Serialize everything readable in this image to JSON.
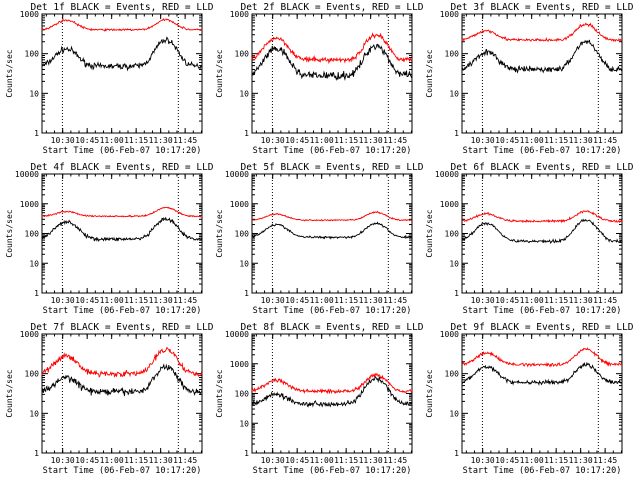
{
  "shared": {
    "xlabel": "Start Time (06-Feb-07 10:17:20)",
    "ylabel": "Counts/sec",
    "x_ticks": [
      "10:30",
      "10:45",
      "11:00",
      "11:15",
      "11:30",
      "11:45"
    ],
    "x_tick_minutes": [
      12.67,
      27.67,
      42.67,
      57.67,
      72.67,
      87.67
    ],
    "xlim_minutes": [
      0,
      98
    ],
    "y_ticks_small": [
      "1",
      "10",
      "100",
      "1000"
    ],
    "y_ticks_large": [
      "1",
      "10",
      "100",
      "1000",
      "10000"
    ],
    "vline_minutes": [
      12.5,
      83.5
    ],
    "colors": {
      "events": "#000000",
      "lld": "#ff0000"
    }
  },
  "chart_data": [
    {
      "type": "line",
      "title": "Det 1f BLACK = Events, RED = LLD",
      "yscale": "log",
      "ylim": [
        1,
        1000
      ],
      "series": [
        {
          "name": "Events",
          "color": "#000000",
          "base": 48,
          "peak1": 130,
          "peak2": 220,
          "noise": 0.06
        },
        {
          "name": "LLD",
          "color": "#ff0000",
          "base": 400,
          "peak1": 700,
          "peak2": 720,
          "noise": 0.02
        }
      ]
    },
    {
      "type": "line",
      "title": "Det 2f BLACK = Events, RED = LLD",
      "yscale": "log",
      "ylim": [
        1,
        1000
      ],
      "series": [
        {
          "name": "Events",
          "color": "#000000",
          "base": 28,
          "peak1": 130,
          "peak2": 160,
          "noise": 0.08
        },
        {
          "name": "LLD",
          "color": "#ff0000",
          "base": 70,
          "peak1": 250,
          "peak2": 300,
          "noise": 0.05
        }
      ]
    },
    {
      "type": "line",
      "title": "Det 3f BLACK = Events, RED = LLD",
      "yscale": "log",
      "ylim": [
        1,
        1000
      ],
      "series": [
        {
          "name": "Events",
          "color": "#000000",
          "base": 40,
          "peak1": 110,
          "peak2": 200,
          "noise": 0.06
        },
        {
          "name": "LLD",
          "color": "#ff0000",
          "base": 220,
          "peak1": 380,
          "peak2": 550,
          "noise": 0.03
        }
      ]
    },
    {
      "type": "line",
      "title": "Det 4f BLACK = Events, RED = LLD",
      "yscale": "log",
      "ylim": [
        1,
        10000
      ],
      "series": [
        {
          "name": "Events",
          "color": "#000000",
          "base": 65,
          "peak1": 250,
          "peak2": 300,
          "noise": 0.05
        },
        {
          "name": "LLD",
          "color": "#ff0000",
          "base": 380,
          "peak1": 550,
          "peak2": 750,
          "noise": 0.02
        }
      ]
    },
    {
      "type": "line",
      "title": "Det 5f BLACK = Events, RED = LLD",
      "yscale": "log",
      "ylim": [
        1,
        10000
      ],
      "series": [
        {
          "name": "Events",
          "color": "#000000",
          "base": 75,
          "peak1": 200,
          "peak2": 220,
          "noise": 0.03
        },
        {
          "name": "LLD",
          "color": "#ff0000",
          "base": 280,
          "peak1": 450,
          "peak2": 520,
          "noise": 0.02
        }
      ]
    },
    {
      "type": "line",
      "title": "Det 6f BLACK = Events, RED = LLD",
      "yscale": "log",
      "ylim": [
        1,
        10000
      ],
      "series": [
        {
          "name": "Events",
          "color": "#000000",
          "base": 55,
          "peak1": 220,
          "peak2": 280,
          "noise": 0.04
        },
        {
          "name": "LLD",
          "color": "#ff0000",
          "base": 260,
          "peak1": 460,
          "peak2": 560,
          "noise": 0.03
        }
      ]
    },
    {
      "type": "line",
      "title": "Det 7f BLACK = Events, RED = LLD",
      "yscale": "log",
      "ylim": [
        1,
        1000
      ],
      "series": [
        {
          "name": "Events",
          "color": "#000000",
          "base": 35,
          "peak1": 80,
          "peak2": 150,
          "noise": 0.07
        },
        {
          "name": "LLD",
          "color": "#ff0000",
          "base": 100,
          "peak1": 280,
          "peak2": 420,
          "noise": 0.06
        }
      ]
    },
    {
      "type": "line",
      "title": "Det 8f BLACK = Events, RED = LLD",
      "yscale": "log",
      "ylim": [
        1,
        10000
      ],
      "series": [
        {
          "name": "Events",
          "color": "#000000",
          "base": 45,
          "peak1": 95,
          "peak2": 300,
          "noise": 0.07
        },
        {
          "name": "LLD",
          "color": "#ff0000",
          "base": 120,
          "peak1": 280,
          "peak2": 420,
          "noise": 0.05
        }
      ]
    },
    {
      "type": "line",
      "title": "Det 9f BLACK = Events, RED = LLD",
      "yscale": "log",
      "ylim": [
        1,
        1000
      ],
      "series": [
        {
          "name": "Events",
          "color": "#000000",
          "base": 60,
          "peak1": 150,
          "peak2": 170,
          "noise": 0.04
        },
        {
          "name": "LLD",
          "color": "#ff0000",
          "base": 170,
          "peak1": 330,
          "peak2": 420,
          "noise": 0.03
        }
      ]
    }
  ]
}
